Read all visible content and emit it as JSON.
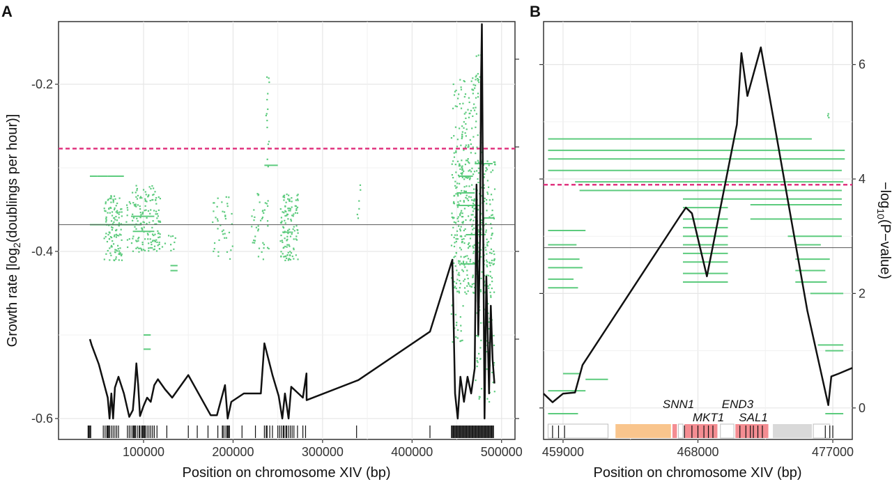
{
  "colors": {
    "panel_bg": "#ffffff",
    "grid": "#e6e6e6",
    "frame": "#333333",
    "segment": "#5ccb7d",
    "curve": "#111111",
    "threshold": "#e0357f",
    "reference": "#555555",
    "gene_orange": "#f9c58d",
    "gene_red": "#f48d92",
    "gene_gray": "#d9d9d9"
  },
  "chart_data": [
    {
      "panel_label": "A",
      "type": "line",
      "xlabel": "Position on chromosome XIV (bp)",
      "ylabel_main": "Growth rate [log",
      "ylabel_sub": "2",
      "ylabel_end": "(doublings per hour)]",
      "xlim": [
        5000,
        515000
      ],
      "ylim": [
        -0.625,
        -0.125
      ],
      "x_ticks": [
        100000,
        200000,
        300000,
        400000,
        500000
      ],
      "x_tick_labels": [
        "100000",
        "200000",
        "300000",
        "400000",
        "500000"
      ],
      "y_ticks": [
        -0.2,
        -0.4,
        -0.6
      ],
      "y_tick_labels": [
        "-0.2",
        "-0.4",
        "-0.6"
      ],
      "right_ticks_y": [
        -0.17,
        -0.275,
        -0.4,
        -0.505,
        -0.6
      ],
      "threshold_y": -0.277,
      "reference_y": -0.368,
      "grid": true,
      "curve": [
        [
          40000,
          -0.505
        ],
        [
          42000,
          -0.512
        ],
        [
          50000,
          -0.535
        ],
        [
          60000,
          -0.575
        ],
        [
          62000,
          -0.6
        ],
        [
          64000,
          -0.57
        ],
        [
          66000,
          -0.6
        ],
        [
          68000,
          -0.563
        ],
        [
          72000,
          -0.55
        ],
        [
          78000,
          -0.57
        ],
        [
          84000,
          -0.598
        ],
        [
          88000,
          -0.59
        ],
        [
          90000,
          -0.565
        ],
        [
          92000,
          -0.534
        ],
        [
          94000,
          -0.56
        ],
        [
          96000,
          -0.597
        ],
        [
          100000,
          -0.585
        ],
        [
          104000,
          -0.575
        ],
        [
          108000,
          -0.58
        ],
        [
          112000,
          -0.56
        ],
        [
          116000,
          -0.553
        ],
        [
          124000,
          -0.565
        ],
        [
          132000,
          -0.575
        ],
        [
          150000,
          -0.548
        ],
        [
          175000,
          -0.596
        ],
        [
          182000,
          -0.596
        ],
        [
          191000,
          -0.56
        ],
        [
          194000,
          -0.6
        ],
        [
          198000,
          -0.58
        ],
        [
          212000,
          -0.57
        ],
        [
          231000,
          -0.57
        ],
        [
          235000,
          -0.51
        ],
        [
          244000,
          -0.548
        ],
        [
          251000,
          -0.573
        ],
        [
          255000,
          -0.6
        ],
        [
          258000,
          -0.57
        ],
        [
          262000,
          -0.6
        ],
        [
          265000,
          -0.562
        ],
        [
          278000,
          -0.575
        ],
        [
          282000,
          -0.546
        ],
        [
          282200,
          -0.578
        ],
        [
          340000,
          -0.554
        ],
        [
          420000,
          -0.496
        ],
        [
          445000,
          -0.41
        ],
        [
          448000,
          -0.57
        ],
        [
          451000,
          -0.6
        ],
        [
          454000,
          -0.55
        ],
        [
          458000,
          -0.58
        ],
        [
          462000,
          -0.55
        ],
        [
          466000,
          -0.57
        ],
        [
          470000,
          -0.54
        ],
        [
          472000,
          -0.32
        ],
        [
          474000,
          -0.5
        ],
        [
          476000,
          -0.38
        ],
        [
          477000,
          -0.2
        ],
        [
          478000,
          -0.128
        ],
        [
          479000,
          -0.3
        ],
        [
          481000,
          -0.6
        ],
        [
          483000,
          -0.43
        ],
        [
          486000,
          -0.57
        ],
        [
          488000,
          -0.465
        ],
        [
          490000,
          -0.53
        ],
        [
          492000,
          -0.558
        ]
      ],
      "segments": [
        [
          40000,
          48000,
          -0.31
        ],
        [
          48000,
          60000,
          -0.31
        ],
        [
          60000,
          78000,
          -0.31
        ],
        [
          40000,
          98000,
          -0.368
        ],
        [
          86000,
          112000,
          -0.358
        ],
        [
          88000,
          112000,
          -0.376
        ],
        [
          130000,
          138000,
          -0.417
        ],
        [
          130000,
          138000,
          -0.423
        ],
        [
          100000,
          108000,
          -0.5
        ],
        [
          100000,
          108000,
          -0.517
        ],
        [
          235000,
          250000,
          -0.297
        ],
        [
          255000,
          265000,
          -0.377
        ],
        [
          450000,
          470000,
          -0.33
        ],
        [
          450000,
          475000,
          -0.345
        ],
        [
          460000,
          482000,
          -0.38
        ],
        [
          470000,
          490000,
          -0.295
        ],
        [
          480000,
          492000,
          -0.36
        ],
        [
          452000,
          468000,
          -0.31
        ],
        [
          455000,
          472000,
          -0.415
        ]
      ],
      "dot_clusters": [
        [
          55000,
          75000,
          -0.41,
          -0.33,
          120
        ],
        [
          80000,
          118000,
          -0.4,
          -0.32,
          160
        ],
        [
          120000,
          135000,
          -0.4,
          -0.38,
          10
        ],
        [
          175000,
          200000,
          -0.41,
          -0.33,
          40
        ],
        [
          220000,
          240000,
          -0.41,
          -0.33,
          40
        ],
        [
          236000,
          240000,
          -0.3,
          -0.19,
          15
        ],
        [
          252000,
          272000,
          -0.41,
          -0.33,
          120
        ],
        [
          338000,
          342000,
          -0.36,
          -0.31,
          6
        ],
        [
          443000,
          492000,
          -0.45,
          -0.29,
          420
        ],
        [
          443000,
          470000,
          -0.29,
          -0.19,
          80
        ],
        [
          470000,
          478000,
          -0.29,
          -0.16,
          30
        ],
        [
          470000,
          492000,
          -0.58,
          -0.45,
          60
        ],
        [
          443000,
          458000,
          -0.51,
          -0.46,
          20
        ]
      ],
      "rug": [
        38000,
        39000,
        40000,
        41000,
        55000,
        57000,
        59000,
        60000,
        61000,
        62000,
        64000,
        66000,
        68000,
        70000,
        72000,
        82000,
        84000,
        86000,
        88000,
        89000,
        90000,
        91000,
        93000,
        95000,
        96000,
        98000,
        99000,
        100000,
        101000,
        102000,
        104000,
        106000,
        108000,
        110000,
        112000,
        115000,
        126000,
        150000,
        160000,
        172000,
        183000,
        188000,
        189000,
        191000,
        193000,
        194000,
        195000,
        196000,
        210000,
        225000,
        235000,
        237000,
        238000,
        241000,
        244000,
        250000,
        252000,
        254000,
        256000,
        257000,
        259000,
        260000,
        262000,
        264000,
        266000,
        268000,
        272000,
        278000,
        281000,
        338000,
        420000,
        444000,
        445000,
        446000,
        447000,
        448000,
        449000,
        450000,
        451000,
        452000,
        453000,
        454000,
        455000,
        456000,
        457000,
        458000,
        459000,
        460000,
        461000,
        462000,
        463000,
        464000,
        465000,
        466000,
        467000,
        468000,
        469000,
        470000,
        471000,
        472000,
        473000,
        474000,
        475000,
        476000,
        477000,
        478000,
        479000,
        480000,
        481000,
        482000,
        483000,
        484000,
        485000,
        486000,
        487000,
        488000,
        489000,
        490000,
        491000
      ]
    },
    {
      "panel_label": "B",
      "type": "line",
      "xlabel": "Position on chromosome XIV (bp)",
      "ylabel_main": "−log",
      "ylabel_sub": "10",
      "ylabel_end": "(P−value)",
      "xlim": [
        457700,
        478300
      ],
      "ylim": [
        -0.55,
        6.75
      ],
      "x_ticks": [
        459000,
        468000,
        477000
      ],
      "x_tick_labels": [
        "459000",
        "468000",
        "477000"
      ],
      "y_ticks": [
        0,
        2,
        4,
        6
      ],
      "y_tick_labels": [
        "0",
        "2",
        "4",
        "6"
      ],
      "threshold_y": 3.9,
      "reference_y": 2.8,
      "grid": true,
      "curve": [
        [
          457700,
          0.25
        ],
        [
          458300,
          0.1
        ],
        [
          459000,
          0.25
        ],
        [
          459800,
          0.27
        ],
        [
          460300,
          0.75
        ],
        [
          466800,
          3.35
        ],
        [
          467200,
          3.5
        ],
        [
          467600,
          3.4
        ],
        [
          468600,
          2.3
        ],
        [
          470600,
          4.95
        ],
        [
          470900,
          6.2
        ],
        [
          471300,
          5.45
        ],
        [
          472200,
          6.3
        ],
        [
          475300,
          1.7
        ],
        [
          476700,
          0.05
        ],
        [
          476900,
          0.55
        ],
        [
          477400,
          0.6
        ],
        [
          478300,
          0.7
        ]
      ],
      "segments": [
        [
          458000,
          475600,
          4.7
        ],
        [
          458000,
          477800,
          4.5
        ],
        [
          458000,
          477800,
          4.35
        ],
        [
          458000,
          477600,
          4.15
        ],
        [
          459800,
          477700,
          3.95
        ],
        [
          460100,
          477600,
          3.8
        ],
        [
          467000,
          477600,
          3.65
        ],
        [
          467000,
          470000,
          3.5
        ],
        [
          467000,
          470000,
          3.3
        ],
        [
          467000,
          470000,
          3.15
        ],
        [
          467000,
          470000,
          3.0
        ],
        [
          467000,
          470000,
          2.85
        ],
        [
          467000,
          470000,
          2.7
        ],
        [
          467000,
          470000,
          2.55
        ],
        [
          467000,
          470000,
          2.35
        ],
        [
          467000,
          470000,
          2.2
        ],
        [
          458000,
          460500,
          3.1
        ],
        [
          458000,
          459900,
          2.85
        ],
        [
          458000,
          460100,
          2.6
        ],
        [
          458000,
          460300,
          2.45
        ],
        [
          458000,
          459700,
          2.25
        ],
        [
          458000,
          460000,
          2.1
        ],
        [
          471500,
          477600,
          3.55
        ],
        [
          471500,
          477600,
          3.3
        ],
        [
          474000,
          477600,
          3.0
        ],
        [
          474500,
          476200,
          2.85
        ],
        [
          474500,
          476800,
          2.6
        ],
        [
          474500,
          476500,
          2.4
        ],
        [
          474500,
          476600,
          2.2
        ],
        [
          476000,
          477700,
          1.1
        ],
        [
          476500,
          477700,
          1.0
        ],
        [
          475500,
          477700,
          2.0
        ],
        [
          460500,
          462000,
          0.5
        ],
        [
          459000,
          460100,
          0.6
        ],
        [
          458000,
          460500,
          0.3
        ],
        [
          458000,
          460000,
          -0.1
        ],
        [
          476500,
          477700,
          -0.1
        ]
      ],
      "dot_clusters": [
        [
          476600,
          476700,
          5.0,
          5.2,
          3
        ]
      ],
      "rug": [
        458300,
        458700,
        459100,
        467100,
        467600,
        468000,
        468400,
        468700,
        469000,
        470800,
        471200,
        471500,
        471700,
        472000,
        472300,
        476500,
        476800,
        477000
      ],
      "gene_boxes": [
        [
          458000,
          462000,
          "outline"
        ],
        [
          462500,
          466200,
          "orange"
        ],
        [
          466300,
          466600,
          "red"
        ],
        [
          466700,
          467000,
          "outline"
        ],
        [
          467100,
          469300,
          "red"
        ],
        [
          469500,
          470400,
          "outline"
        ],
        [
          470500,
          472700,
          "red"
        ],
        [
          473000,
          475600,
          "gray"
        ],
        [
          475700,
          476800,
          "outline"
        ]
      ],
      "gene_labels": [
        {
          "text": "SNN1",
          "x": 466700,
          "row": 0
        },
        {
          "text": "END3",
          "x": 470650,
          "row": 0
        },
        {
          "text": "MKT1",
          "x": 468700,
          "row": 1
        },
        {
          "text": "SAL1",
          "x": 471700,
          "row": 1
        }
      ]
    }
  ]
}
